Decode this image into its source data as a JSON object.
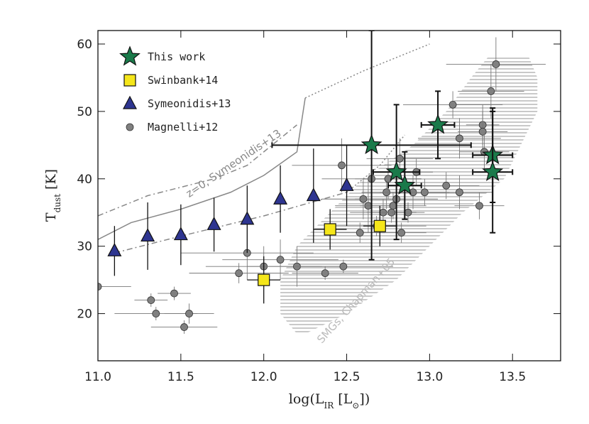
{
  "chart_data": {
    "type": "scatter",
    "x_label": [
      "log(L",
      "IR",
      " [L",
      "⊙",
      "])"
    ],
    "y_label": [
      "T",
      "dust",
      " [K]"
    ],
    "xlim": [
      11.0,
      13.79
    ],
    "ylim": [
      13,
      62
    ],
    "xticks": [
      {
        "value": 11,
        "label": "11.0"
      },
      11.5,
      {
        "value": 12,
        "label": "12.0"
      },
      12.5,
      {
        "value": 13,
        "label": "13.0"
      },
      13.5
    ],
    "yticks": [
      20,
      30,
      40,
      50,
      60
    ],
    "legend": "top-left",
    "series": [
      {
        "name": "This work",
        "marker": "star",
        "color": "#1a7a4a",
        "x": [
          12.65,
          12.8,
          12.85,
          13.05,
          13.38,
          13.38
        ],
        "values": [
          45,
          41,
          39,
          48,
          43.5,
          41
        ],
        "xerr": [
          0.6,
          0.14,
          0.1,
          0.1,
          0.12,
          0.12
        ],
        "yerr": [
          17,
          10,
          5,
          5,
          7,
          9
        ]
      },
      {
        "name": "Swinbank+14",
        "marker": "square",
        "color": "#f5e61a",
        "x": [
          12.0,
          12.4,
          12.7
        ],
        "values": [
          25,
          32.5,
          33
        ],
        "xerr": [
          0.1,
          0.1,
          0.1
        ],
        "yerr": [
          3.5,
          3,
          3
        ]
      },
      {
        "name": "Symeonidis+13",
        "marker": "triangle",
        "color": "#2e3590",
        "x": [
          11.1,
          11.3,
          11.5,
          11.7,
          11.9,
          12.1,
          12.3,
          12.5
        ],
        "values": [
          29.3,
          31.5,
          31.7,
          33.2,
          34,
          37,
          37.5,
          39
        ],
        "yerr": [
          3.7,
          5,
          4.5,
          4,
          5,
          5,
          7,
          6
        ]
      },
      {
        "name": "Magnelli+12",
        "marker": "circle",
        "color": "#808080",
        "x": [
          11.0,
          11.32,
          11.35,
          11.46,
          11.52,
          11.55,
          11.9,
          11.85,
          12.0,
          12.1,
          12.2,
          12.37,
          12.48,
          12.47,
          12.58,
          12.6,
          12.63,
          12.65,
          12.68,
          12.72,
          12.74,
          12.75,
          12.77,
          12.78,
          12.8,
          12.82,
          12.83,
          12.87,
          12.9,
          12.92,
          12.97,
          13.1,
          13.14,
          13.18,
          13.18,
          13.3,
          13.32,
          13.32,
          13.33,
          13.37,
          13.4
        ],
        "values": [
          24,
          22,
          20,
          23,
          18,
          20,
          29,
          26,
          27,
          28,
          27,
          26,
          27,
          42,
          32,
          37,
          36,
          40,
          33,
          35,
          38,
          40,
          35,
          36,
          37,
          43,
          32,
          35,
          38,
          41,
          38,
          39,
          51,
          46,
          38,
          36,
          48,
          47,
          44,
          53,
          57
        ],
        "xerr": [
          0.2,
          0.1,
          0.25,
          0.1,
          0.2,
          0.15,
          0.4,
          0.3,
          0.35,
          0.35,
          0.3,
          0.2,
          0.3,
          0.3,
          0.15,
          0.25,
          0.2,
          0.3,
          0.3,
          0.2,
          0.15,
          0.2,
          0.15,
          0.2,
          0.25,
          0.2,
          0.15,
          0.1,
          0.2,
          0.1,
          0.15,
          0.2,
          0.3,
          0.25,
          0.2,
          0.15,
          0.1,
          0.15,
          0.15,
          0.2,
          0.3
        ],
        "yerr": [
          1,
          1,
          1,
          1,
          1,
          1.5,
          4,
          1.5,
          3,
          3,
          3,
          1,
          1,
          4,
          1.5,
          3,
          4,
          4,
          1.5,
          2,
          2.5,
          3,
          1.5,
          2,
          3,
          3,
          1.5,
          1.5,
          2.5,
          2,
          2,
          2,
          2,
          3,
          2.5,
          2,
          3,
          3,
          3,
          4,
          4
        ]
      }
    ],
    "curves": [
      {
        "style": "dashdot",
        "x": [
          11.0,
          11.3,
          11.7,
          11.9,
          12.1,
          12.2
        ],
        "values": [
          34.5,
          37.5,
          40,
          42,
          46,
          48
        ]
      },
      {
        "style": "solid",
        "x": [
          11.0,
          11.2,
          11.5,
          11.8,
          12.0,
          12.2,
          12.25
        ],
        "values": [
          31,
          33.5,
          35.5,
          38,
          40.5,
          44,
          52
        ]
      },
      {
        "style": "dotted",
        "x": [
          12.25,
          12.6,
          13.0
        ],
        "values": [
          52,
          56,
          60
        ]
      },
      {
        "style": "dashdot",
        "x": [
          11.1,
          11.5,
          12.0,
          12.5
        ],
        "values": [
          29,
          31.5,
          34.5,
          38
        ]
      },
      {
        "style": "dotted",
        "x": [
          12.5,
          12.7,
          12.85
        ],
        "values": [
          38,
          42,
          46.5
        ]
      }
    ],
    "band": {
      "y": [
        17,
        20,
        25,
        30,
        35,
        40,
        45,
        50,
        55,
        58
      ],
      "x_low": [
        12.2,
        12.1,
        12.1,
        12.2,
        12.4,
        12.6,
        12.9,
        13.1,
        13.25,
        13.35
      ],
      "x_high": [
        12.25,
        12.5,
        12.8,
        13.0,
        13.2,
        13.45,
        13.55,
        13.65,
        13.65,
        13.6
      ]
    },
    "annotations": [
      "z=0, Symeonidis+13",
      "SMGs, Chapman+05"
    ]
  }
}
